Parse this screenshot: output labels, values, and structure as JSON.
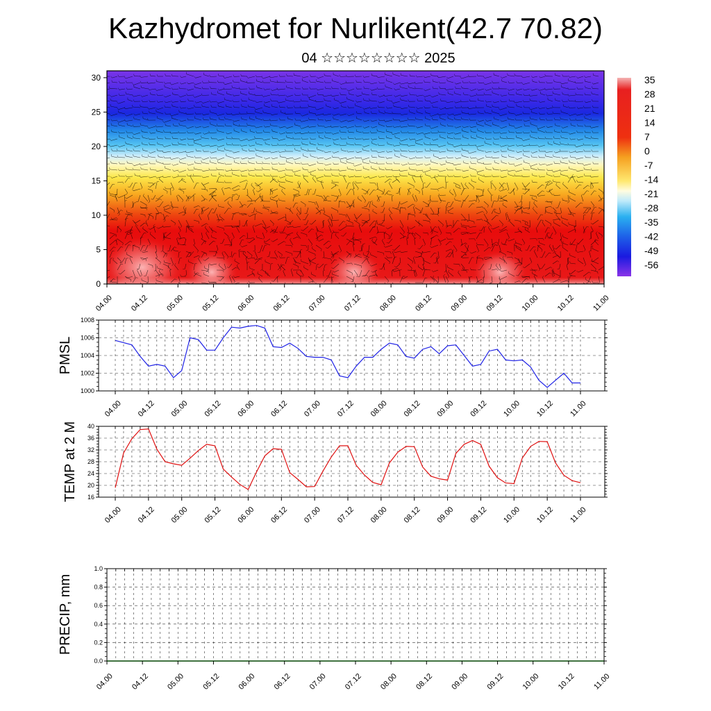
{
  "title": "Kazhydromet for Nurlikent(42.7 70.82)",
  "subtitle": "04 ☆☆☆☆☆☆☆☆ 2025",
  "colors": {
    "pmsl_line": "#1f22e6",
    "temp_line": "#e01010",
    "precip_line": "#004400"
  },
  "time_ticks": [
    "04.00",
    "04.12",
    "05.00",
    "05.12",
    "06.00",
    "06.12",
    "07.00",
    "07.12",
    "08.00",
    "08.12",
    "09.00",
    "09.12",
    "10.00",
    "10.12",
    "11.00"
  ],
  "chart_data": [
    {
      "type": "heatmap",
      "name": "cross-section",
      "y_ticks": [
        "0",
        "5",
        "10",
        "15",
        "20",
        "25",
        "30"
      ],
      "ylim": [
        0,
        31
      ],
      "xlim": [
        0,
        168
      ],
      "colorbar_labels": [
        "35",
        "28",
        "21",
        "14",
        "7",
        "0",
        "-7",
        "-14",
        "-21",
        "-28",
        "-35",
        "-42",
        "-49",
        "-56"
      ],
      "overlay": "wind barbs"
    },
    {
      "type": "line",
      "ylabel": "PMSL",
      "ylim": [
        1000,
        1008
      ],
      "y_ticks": [
        "1000",
        "1002",
        "1004",
        "1006",
        "1008"
      ],
      "x_hours": [
        0,
        6,
        9,
        12,
        15,
        18,
        21,
        24,
        27,
        30,
        33,
        36,
        39,
        42,
        45,
        48,
        51,
        54,
        57,
        60,
        63,
        66,
        69,
        72,
        75,
        78,
        81,
        84,
        87,
        90,
        93,
        96,
        99,
        102,
        105,
        108,
        111,
        114,
        117,
        120,
        123,
        126,
        129,
        132,
        135,
        138,
        141,
        144,
        147,
        150,
        153,
        156,
        159,
        162,
        165,
        168
      ],
      "values": [
        1005.7,
        1005.2,
        1003.9,
        1002.8,
        1003.0,
        1002.8,
        1001.5,
        1002.3,
        1006.0,
        1005.8,
        1004.6,
        1004.6,
        1006.0,
        1007.2,
        1007.1,
        1007.3,
        1007.4,
        1007.1,
        1005.0,
        1004.9,
        1005.4,
        1004.8,
        1003.9,
        1003.8,
        1003.8,
        1003.5,
        1001.7,
        1001.5,
        1002.8,
        1003.8,
        1003.8,
        1004.7,
        1005.4,
        1005.2,
        1003.9,
        1003.7,
        1004.7,
        1005.0,
        1004.2,
        1005.1,
        1005.2,
        1004.0,
        1002.8,
        1003.0,
        1004.5,
        1004.7,
        1003.5,
        1003.4,
        1003.5,
        1002.7,
        1001.2,
        1000.4,
        1001.2,
        1002.0,
        1000.9,
        1000.9
      ]
    },
    {
      "type": "line",
      "ylabel": "TEMP at 2 M",
      "ylim": [
        16,
        40
      ],
      "y_ticks": [
        "16",
        "20",
        "24",
        "28",
        "32",
        "36",
        "40"
      ],
      "x_hours": [
        0,
        3,
        6,
        9,
        12,
        15,
        18,
        21,
        24,
        27,
        30,
        33,
        36,
        39,
        42,
        45,
        48,
        51,
        54,
        57,
        60,
        63,
        66,
        69,
        72,
        75,
        78,
        81,
        84,
        87,
        90,
        93,
        96,
        99,
        102,
        105,
        108,
        111,
        114,
        117,
        120,
        123,
        126,
        129,
        132,
        135,
        138,
        141,
        144,
        147,
        150,
        153,
        156,
        159,
        162,
        165,
        168
      ],
      "values": [
        19.2,
        31.0,
        35.8,
        38.9,
        39.1,
        32.3,
        28.0,
        27.3,
        26.8,
        29.2,
        31.8,
        33.9,
        33.4,
        25.5,
        22.8,
        20.3,
        18.6,
        24.5,
        30.0,
        32.4,
        32.2,
        24.3,
        22.0,
        19.5,
        19.6,
        24.8,
        29.6,
        33.4,
        33.4,
        26.8,
        23.5,
        21.0,
        20.2,
        27.6,
        31.2,
        33.2,
        33.1,
        26.2,
        23.1,
        22.2,
        21.8,
        30.8,
        33.9,
        35.2,
        33.9,
        26.5,
        22.6,
        20.8,
        20.6,
        29.3,
        33.2,
        34.9,
        34.8,
        27.6,
        23.4,
        21.6,
        20.9
      ]
    },
    {
      "type": "line",
      "ylabel": "PRECIP, mm",
      "ylim": [
        0,
        1
      ],
      "y_ticks": [
        "0.0",
        "0.2",
        "0.4",
        "0.6",
        "0.8",
        "1.0"
      ],
      "x_hours": [
        0,
        168
      ],
      "values": [
        0,
        0
      ]
    }
  ]
}
